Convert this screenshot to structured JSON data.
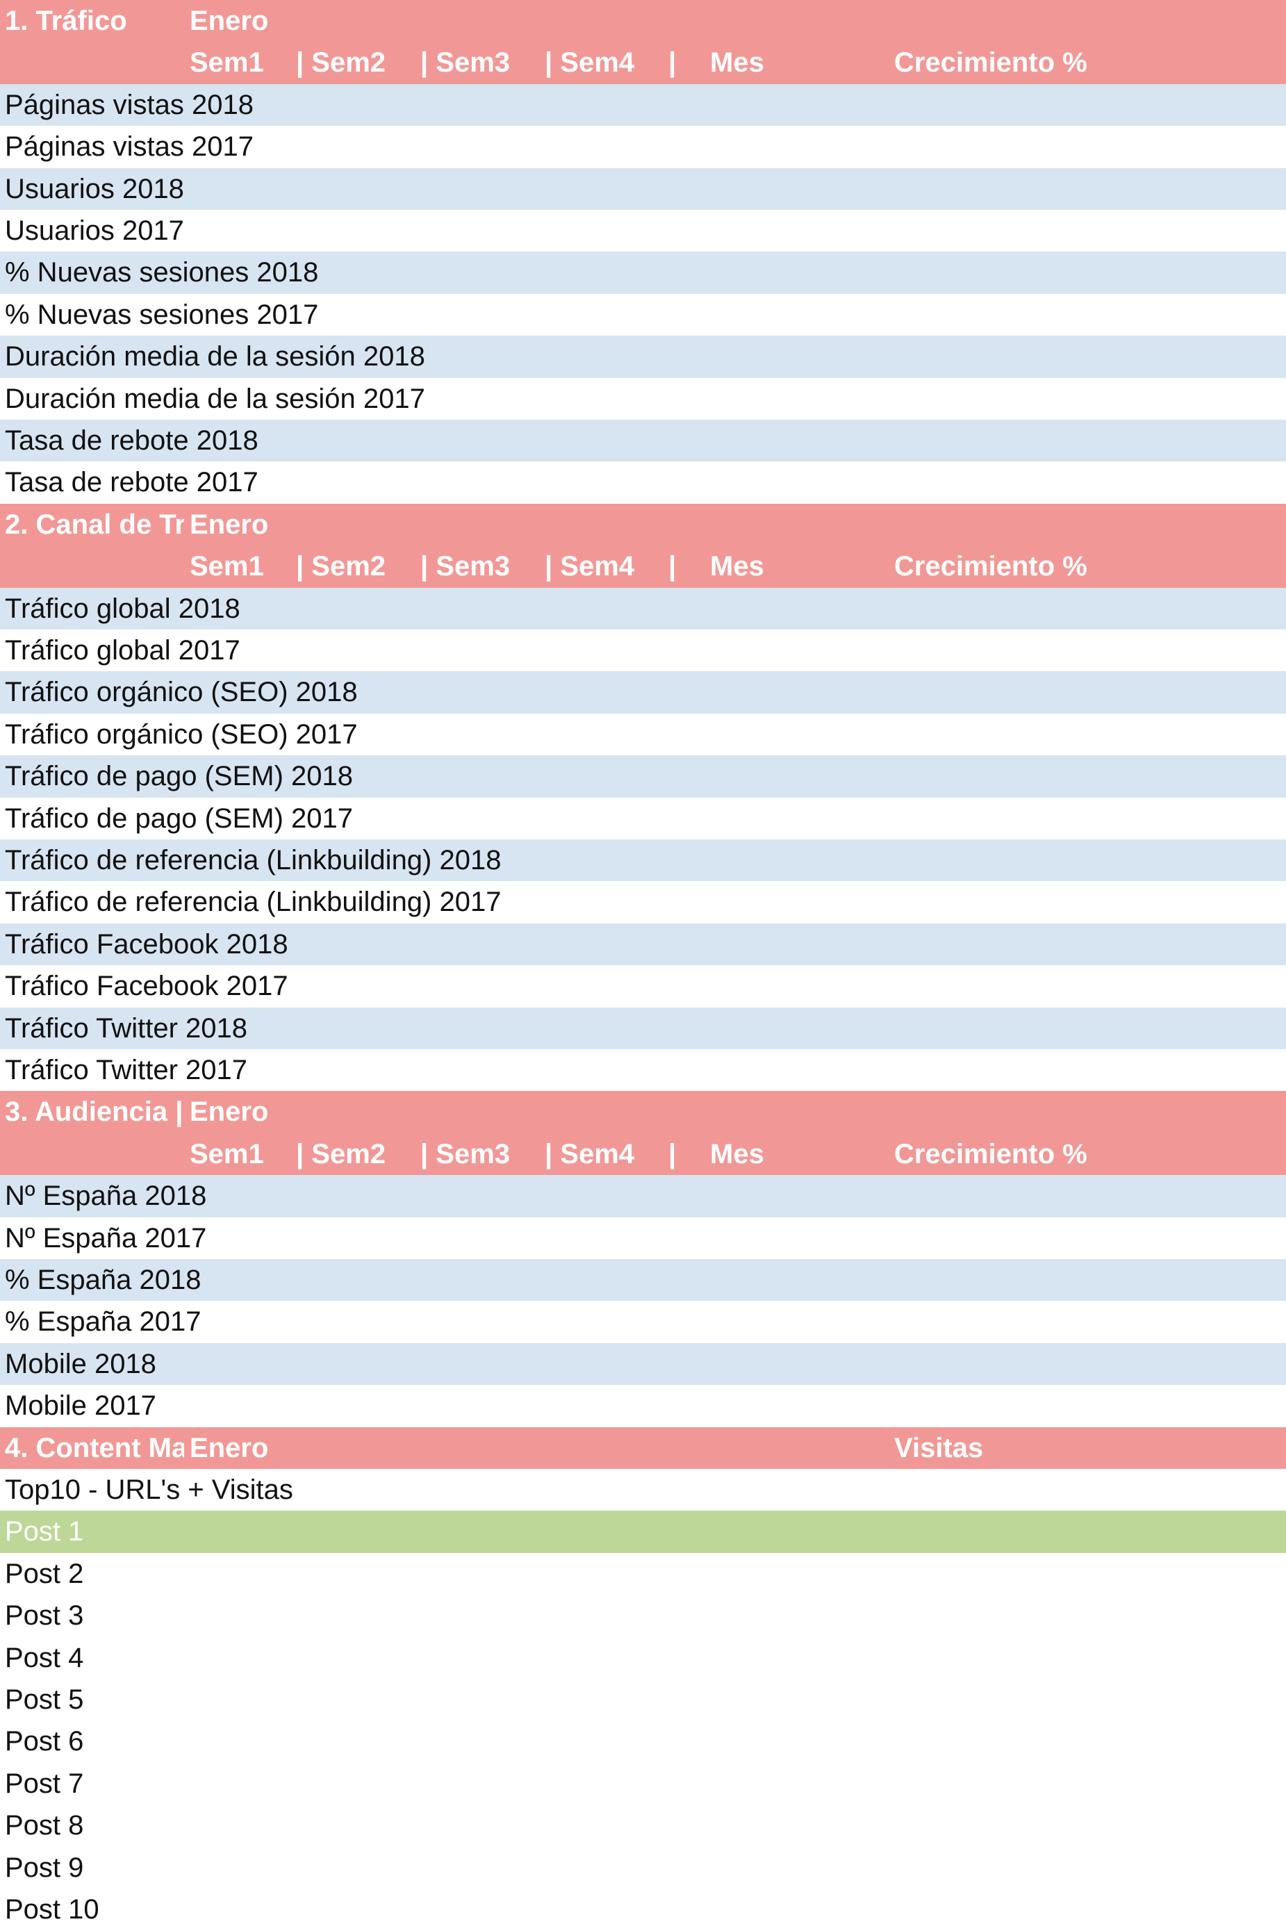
{
  "colors": {
    "header": "#f19896",
    "band": "#d7e4f1",
    "highlight": "#bcd797",
    "header_text": "#ffffff"
  },
  "columns": {
    "month": "Enero",
    "sem1": "Sem1",
    "sem2": "| Sem2",
    "sem3": "| Sem3",
    "sem4": "| Sem4",
    "bar": "|",
    "mes": "Mes",
    "crecimiento": "Crecimiento %",
    "visitas": "Visitas"
  },
  "sections": {
    "trafico": {
      "title": "1. Tráfico",
      "rows": [
        "Páginas vistas 2018",
        "Páginas vistas 2017",
        "Usuarios 2018",
        "Usuarios 2017",
        "% Nuevas sesiones 2018",
        "% Nuevas sesiones 2017",
        "Duración media de la sesión 2018",
        "Duración media de la sesión 2017",
        "Tasa de rebote 2018",
        "Tasa de rebote 2017"
      ]
    },
    "canal": {
      "title": "2. Canal de Tr",
      "rows": [
        "Tráfico global 2018",
        "Tráfico global 2017",
        "Tráfico orgánico (SEO) 2018",
        "Tráfico orgánico (SEO) 2017",
        "Tráfico de pago (SEM) 2018",
        "Tráfico de pago (SEM) 2017",
        "Tráfico de referencia (Linkbuilding) 2018",
        "Tráfico de referencia (Linkbuilding) 2017",
        "Tráfico Facebook 2018",
        "Tráfico Facebook 2017",
        "Tráfico Twitter 2018",
        "Tráfico Twitter 2017"
      ]
    },
    "audiencia": {
      "title": "3. Audiencia |",
      "rows": [
        "Nº España 2018",
        "Nº España 2017",
        "% España 2018",
        "% España 2017",
        "Mobile 2018",
        "Mobile 2017"
      ]
    },
    "content": {
      "title": "4. Content Ma",
      "subtitle": "Top10 - URL's + Visitas",
      "rows": [
        "Post 1",
        "Post 2",
        "Post 3",
        "Post 4",
        "Post 5",
        "Post 6",
        "Post 7",
        "Post 8",
        "Post 9",
        "Post 10"
      ]
    }
  }
}
